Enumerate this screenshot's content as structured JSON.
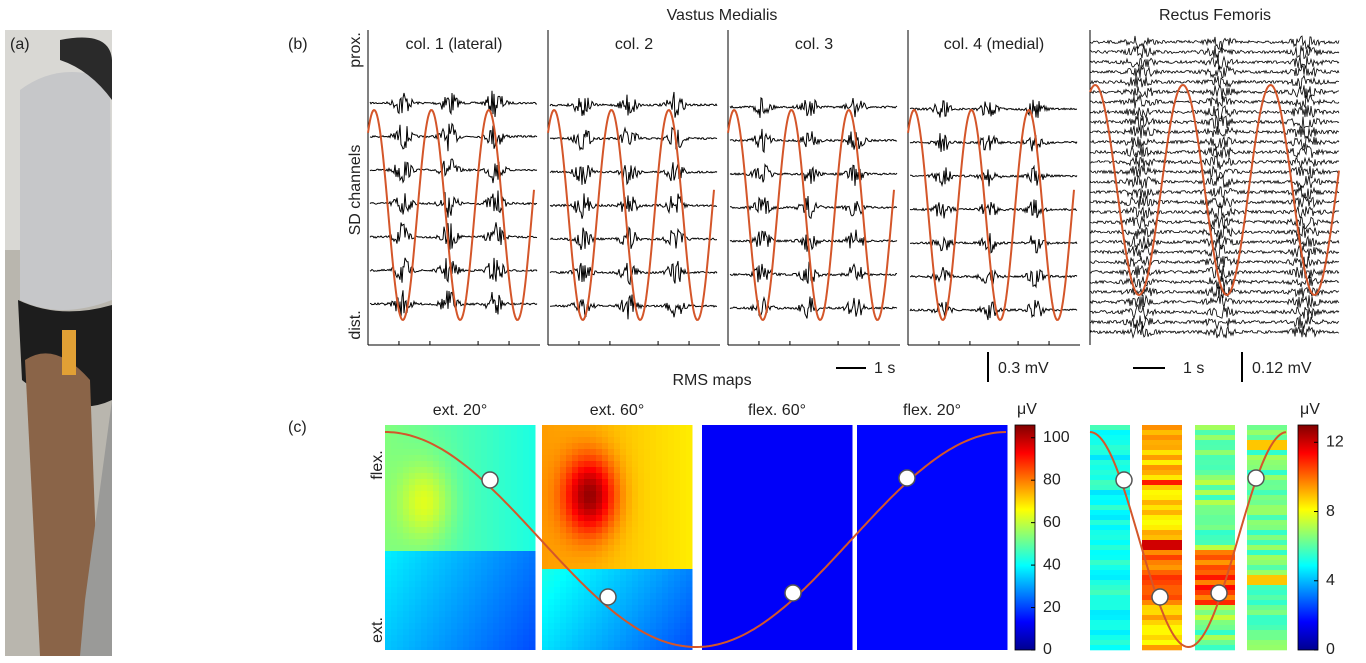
{
  "panels": {
    "a": "(a)",
    "b": "(b)",
    "c": "(c)"
  },
  "emg": {
    "vm_title": "Vastus Medialis",
    "rf_title": "Rectus Femoris",
    "columns": [
      "col. 1 (lateral)",
      "col. 2",
      "col. 3",
      "col. 4 (medial)"
    ],
    "y_top": "prox.",
    "y_label": "SD channels",
    "y_bottom": "dist.",
    "vm_time_scale": "1 s",
    "vm_amp_scale": "0.3 mV",
    "rf_time_scale": "1 s",
    "rf_amp_scale": "0.12 mV"
  },
  "rms": {
    "title": "RMS maps",
    "maps": [
      "ext. 20°",
      "ext. 60°",
      "flex. 60°",
      "flex. 20°"
    ],
    "y_top": "flex.",
    "y_bottom": "ext.",
    "vm_colorbar": {
      "unit": "μV",
      "lim": [
        0,
        106
      ],
      "ticks": [
        0,
        20,
        40,
        60,
        80,
        100
      ]
    },
    "rf_colorbar": {
      "unit": "μV",
      "lim": [
        0,
        13
      ],
      "ticks": [
        0,
        4,
        8,
        12
      ]
    }
  }
}
